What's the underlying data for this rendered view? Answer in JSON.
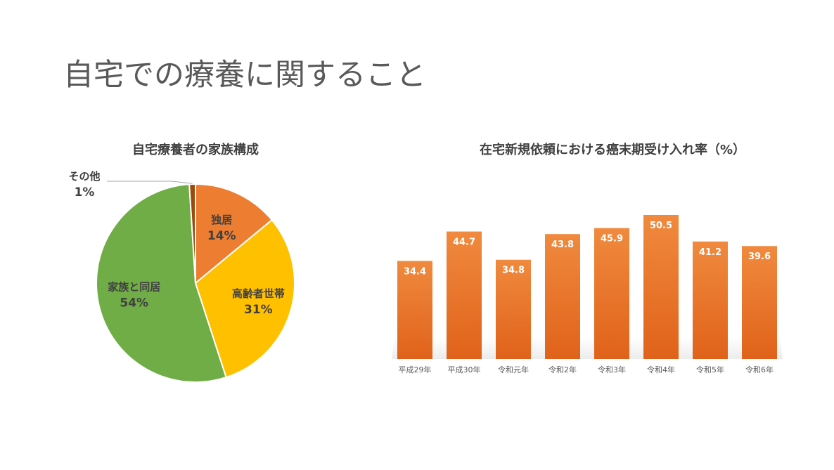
{
  "slide": {
    "title": "自宅での療養に関すること"
  },
  "colors": {
    "single": "#ED7D31",
    "elderly": "#FFC000",
    "family": "#70AD47",
    "other": "#9E480E",
    "bar_top": "#F08A3E",
    "bar_bottom": "#E0621A",
    "label_dark": "#404040",
    "bar_label": "#ffffff"
  },
  "chart_data": [
    {
      "type": "pie",
      "title": "自宅療養者の家族構成",
      "slices": [
        {
          "label": "独居",
          "value": 14,
          "pct_label": "14%",
          "color": "#ED7D31"
        },
        {
          "label": "高齢者世帯",
          "value": 31,
          "pct_label": "31%",
          "color": "#FFC000"
        },
        {
          "label": "家族と同居",
          "value": 54,
          "pct_label": "54%",
          "color": "#70AD47"
        },
        {
          "label": "その他",
          "value": 1,
          "pct_label": "1%",
          "color": "#9E480E"
        }
      ]
    },
    {
      "type": "bar",
      "title": "在宅新規依頼における癌末期受け入れ率（%）",
      "categories": [
        "平成29年",
        "平成30年",
        "令和元年",
        "令和2年",
        "令和3年",
        "令和4年",
        "令和5年",
        "令和6年"
      ],
      "values": [
        34.4,
        44.7,
        34.8,
        43.8,
        45.9,
        50.5,
        41.2,
        39.6
      ],
      "value_labels": [
        "34.4",
        "44.7",
        "34.8",
        "43.8",
        "45.9",
        "50.5",
        "41.2",
        "39.6"
      ],
      "ylim": [
        0,
        50.5
      ],
      "grid": false,
      "legend": "none"
    }
  ]
}
